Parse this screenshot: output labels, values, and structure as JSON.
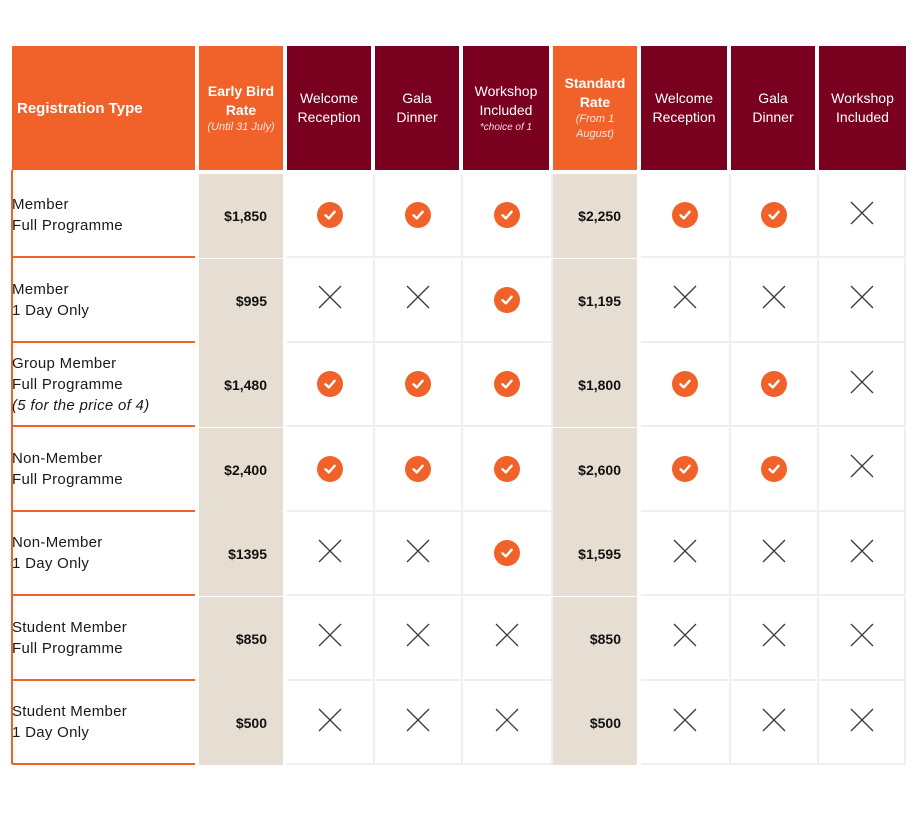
{
  "table": {
    "header": {
      "registration_type": "Registration Type",
      "early_bird": {
        "title": "Early Bird Rate",
        "note": "(Until 31 July)"
      },
      "early_welcome": "Welcome Reception",
      "early_gala": "Gala Dinner",
      "early_workshop": {
        "title": "Workshop Included",
        "note": "*choice of  1"
      },
      "standard": {
        "title": "Standard Rate",
        "note": "(From 1 August)"
      },
      "std_welcome": "Welcome Reception",
      "std_gala": "Gala Dinner",
      "std_workshop": "Workshop Included"
    },
    "rows": [
      {
        "type": [
          "Member",
          "Full Programme",
          ""
        ],
        "early_price": "$1,850",
        "early": [
          "check",
          "check",
          "check"
        ],
        "std_price": "$2,250",
        "std": [
          "check",
          "check",
          "cross"
        ]
      },
      {
        "type": [
          "Member",
          "1 Day Only",
          ""
        ],
        "early_price": "$995",
        "early": [
          "cross",
          "cross",
          "check"
        ],
        "std_price": "$1,195",
        "std": [
          "cross",
          "cross",
          "cross"
        ]
      },
      {
        "type": [
          "Group Member",
          "Full Programme",
          "(5 for the price of 4)"
        ],
        "early_price": "$1,480",
        "early": [
          "check",
          "check",
          "check"
        ],
        "std_price": "$1,800",
        "std": [
          "check",
          "check",
          "cross"
        ]
      },
      {
        "type": [
          "Non-Member",
          "Full Programme",
          ""
        ],
        "early_price": "$2,400",
        "early": [
          "check",
          "check",
          "check"
        ],
        "std_price": "$2,600",
        "std": [
          "check",
          "check",
          "cross"
        ]
      },
      {
        "type": [
          "Non-Member",
          "1 Day Only",
          ""
        ],
        "early_price": "$1395",
        "early": [
          "cross",
          "cross",
          "check"
        ],
        "std_price": "$1,595",
        "std": [
          "cross",
          "cross",
          "cross"
        ]
      },
      {
        "type": [
          "Student Member",
          "Full Programme",
          ""
        ],
        "early_price": "$850",
        "early": [
          "cross",
          "cross",
          "cross"
        ],
        "std_price": "$850",
        "std": [
          "cross",
          "cross",
          "cross"
        ]
      },
      {
        "type": [
          "Student Member",
          "1 Day Only",
          ""
        ],
        "early_price": "$500",
        "early": [
          "cross",
          "cross",
          "cross"
        ],
        "std_price": "$500",
        "std": [
          "cross",
          "cross",
          "cross"
        ]
      }
    ],
    "icons": {
      "included": "check-circle-icon",
      "not_included": "cross-icon"
    },
    "colors": {
      "accent_orange": "#F0622A",
      "maroon": "#7A0020",
      "price_bg": "#E7DED3"
    }
  }
}
